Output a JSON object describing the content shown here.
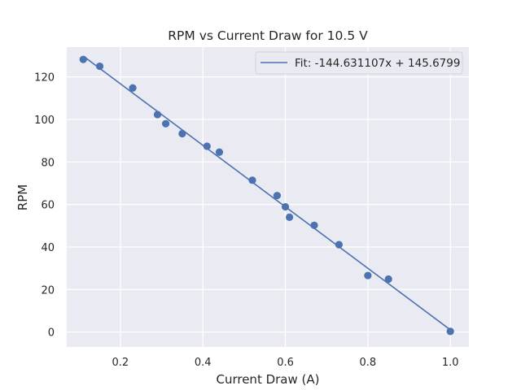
{
  "chart_data": {
    "type": "scatter",
    "title": "RPM vs Current Draw for 10.5 V",
    "xlabel": "Current Draw (A)",
    "ylabel": "RPM",
    "xlim": [
      0.07,
      1.045
    ],
    "ylim": [
      -7,
      134
    ],
    "x_ticks": [
      "0.2",
      "0.4",
      "0.6",
      "0.8",
      "1.0"
    ],
    "x_tick_values": [
      0.2,
      0.4,
      0.6,
      0.8,
      1.0
    ],
    "y_ticks": [
      "0",
      "20",
      "40",
      "60",
      "80",
      "100",
      "120"
    ],
    "y_tick_values": [
      0,
      20,
      40,
      60,
      80,
      100,
      120
    ],
    "grid": true,
    "legend_position": "top-right",
    "colors": {
      "background": "#eaeaf2",
      "grid": "#ffffff",
      "series": "#4c72b0"
    },
    "series": [
      {
        "kind": "scatter",
        "x": [
          0.11,
          0.15,
          0.23,
          0.29,
          0.31,
          0.35,
          0.41,
          0.44,
          0.52,
          0.58,
          0.6,
          0.61,
          0.67,
          0.73,
          0.8,
          0.85,
          1.0
        ],
        "y": [
          128.2,
          125.0,
          114.8,
          102.3,
          98.0,
          93.3,
          87.4,
          84.6,
          71.4,
          64.2,
          58.9,
          54.0,
          50.2,
          41.1,
          26.6,
          24.9,
          0.3
        ]
      },
      {
        "kind": "line",
        "name": "Fit: -144.631107x + 145.6799",
        "slope": -144.631107,
        "intercept": 145.6799,
        "x_range": [
          0.11,
          1.0
        ]
      }
    ]
  }
}
